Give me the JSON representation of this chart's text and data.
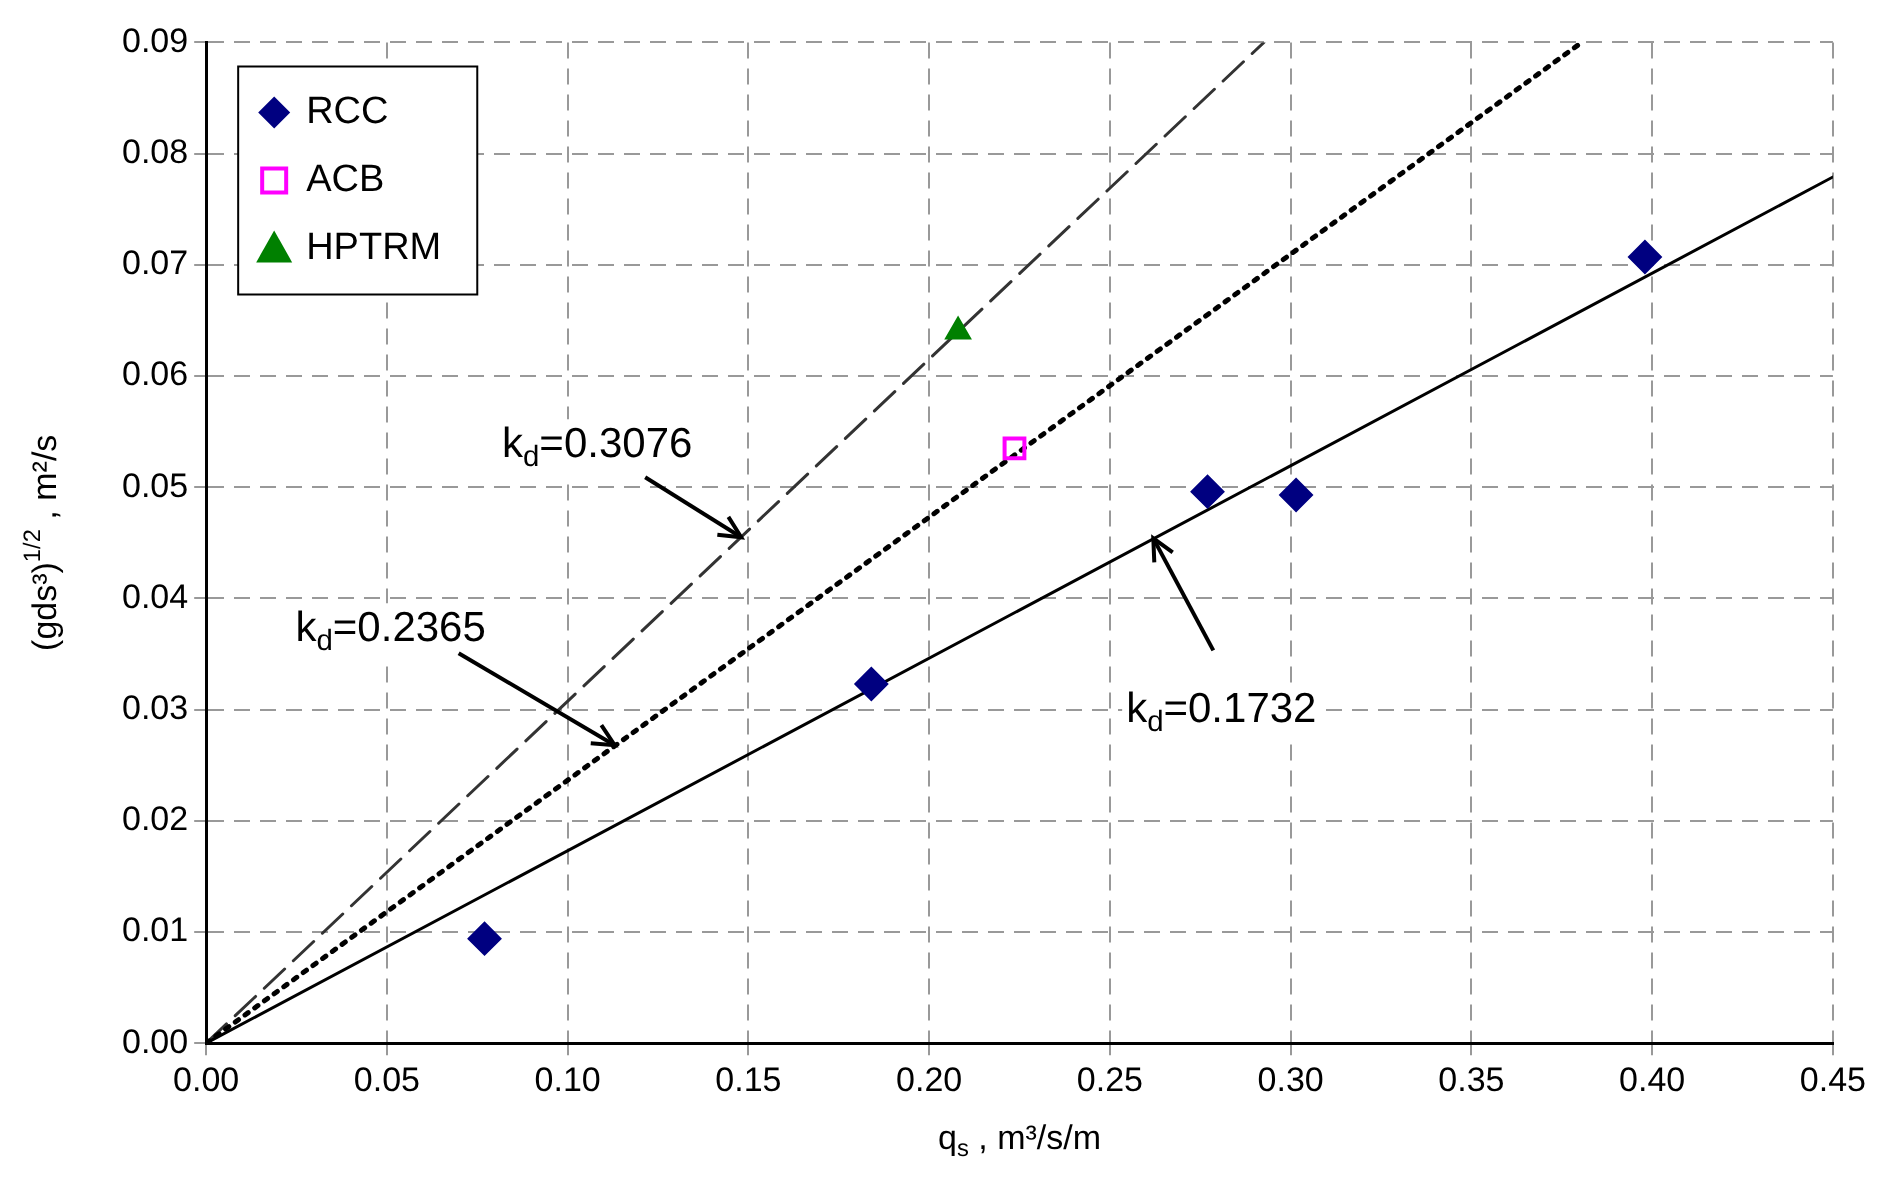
{
  "chart_data": {
    "type": "scatter",
    "xlabel": "q$_{s}$ , m³/s/m",
    "ylabel": "(gds³)$^{1/2}$ , m²/s",
    "xlim": [
      0,
      0.45
    ],
    "xticks": [
      {
        "value": 0,
        "label": "0.00"
      },
      0.05,
      {
        "value": 0.1,
        "label": "0.10"
      },
      0.15,
      {
        "value": 0.2,
        "label": "0.20"
      },
      0.25,
      {
        "value": 0.3,
        "label": "0.30"
      },
      0.35,
      {
        "value": 0.4,
        "label": "0.40"
      },
      0.45
    ],
    "ylim": [
      0,
      0.09
    ],
    "yticks": [
      {
        "value": 0,
        "label": "0.00"
      },
      0.01,
      0.02,
      0.03,
      0.04,
      0.05,
      0.06,
      0.07,
      0.08,
      0.09
    ],
    "grid": true,
    "legend": "top left",
    "series": [
      {
        "name": "RCC",
        "marker": "diamond",
        "color": "#000080",
        "x": [
          0.077,
          0.184,
          0.277,
          0.3015,
          0.398
        ],
        "values": [
          0.0094,
          0.0323,
          0.0496,
          0.0493,
          0.0707
        ]
      },
      {
        "name": "ACB",
        "marker": "square",
        "color": "#ff00ff",
        "x": [
          0.2236
        ],
        "values": [
          0.0535
        ]
      },
      {
        "name": "HPTRM",
        "marker": "triangle",
        "color": "#008000",
        "x": [
          0.208
        ],
        "values": [
          0.064
        ]
      },
      {
        "type": "line",
        "marker": "none",
        "line_style": "solid",
        "color": "#000000",
        "x": [
          0,
          0.45
        ],
        "values": [
          0,
          0.0779
        ]
      },
      {
        "type": "line",
        "marker": "none",
        "line_style": "dotted",
        "color": "#000000",
        "x": [
          0,
          0.3805
        ],
        "values": [
          0,
          0.09
        ]
      },
      {
        "type": "line",
        "marker": "none",
        "line_style": "dashed",
        "color": "#333333",
        "x": [
          0,
          0.2926
        ],
        "values": [
          0,
          0.09
        ]
      }
    ],
    "annotations": [
      {
        "text": "k$_{d}$=0.3076",
        "x": 0.148,
        "y": 0.0455
      },
      {
        "text": "k$_{d}$=0.2365",
        "x": 0.113,
        "y": 0.0268
      },
      {
        "text": "k$_{d}$=0.1732",
        "x": 0.262,
        "y": 0.0454
      }
    ]
  }
}
